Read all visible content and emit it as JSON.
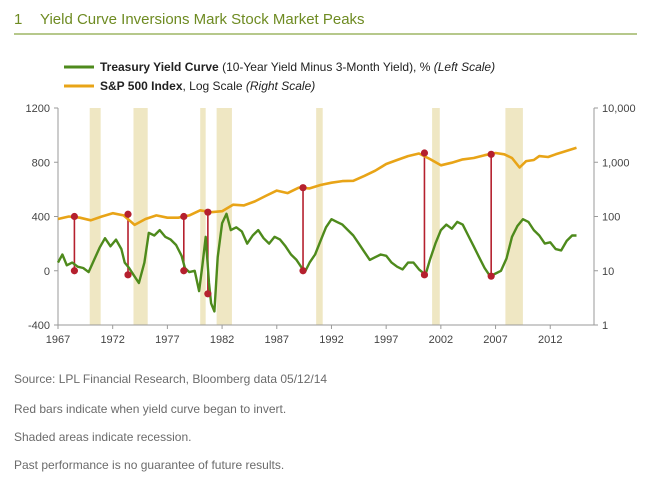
{
  "header": {
    "number": "1",
    "title": "Yield Curve Inversions Mark Stock Market Peaks"
  },
  "legend": {
    "yield": {
      "name": "Treasury Yield Curve",
      "desc": " (10-Year Yield Minus 3-Month Yield), % ",
      "scale": "(Left Scale)",
      "color": "#4e8a1c"
    },
    "sp": {
      "name": "S&P 500 Index",
      "desc": ", Log Scale ",
      "scale": "(Right Scale)",
      "color": "#e8a417"
    }
  },
  "chart_data": {
    "type": "line",
    "x_ticks": [
      "1967",
      "1972",
      "1977",
      "1982",
      "1987",
      "1992",
      "1997",
      "2002",
      "2007",
      "2012"
    ],
    "x_tick_values": [
      1967,
      1972,
      1977,
      1982,
      1987,
      1992,
      1997,
      2002,
      2007,
      2012
    ],
    "xlim": [
      1967,
      2016
    ],
    "left_axis": {
      "ylim": [
        -400,
        1200
      ],
      "ticks": [
        "-400",
        "0",
        "400",
        "800",
        "1200"
      ],
      "tick_values": [
        -400,
        0,
        400,
        800,
        1200
      ]
    },
    "right_axis": {
      "scale": "log",
      "ylim": [
        1,
        10000
      ],
      "ticks": [
        "1",
        "10",
        "100",
        "1,000",
        "10,000"
      ],
      "tick_values": [
        1,
        10,
        100,
        1000,
        10000
      ]
    },
    "recessions": [
      [
        1969.9,
        1970.9
      ],
      [
        1973.9,
        1975.2
      ],
      [
        1980.0,
        1980.5
      ],
      [
        1981.5,
        1982.9
      ],
      [
        1990.6,
        1991.2
      ],
      [
        2001.2,
        2001.9
      ],
      [
        2007.9,
        2009.5
      ]
    ],
    "series": [
      {
        "name": "Treasury Yield Curve",
        "color": "#4e8a1c",
        "x": [
          1967.0,
          1967.4,
          1967.8,
          1968.3,
          1968.8,
          1969.3,
          1969.8,
          1970.3,
          1970.8,
          1971.3,
          1971.8,
          1972.3,
          1972.8,
          1973.1,
          1973.5,
          1973.9,
          1974.4,
          1974.9,
          1975.3,
          1975.8,
          1976.3,
          1976.8,
          1977.3,
          1977.8,
          1978.3,
          1978.6,
          1979.0,
          1979.5,
          1979.9,
          1980.2,
          1980.5,
          1980.8,
          1981.0,
          1981.3,
          1981.6,
          1982.0,
          1982.4,
          1982.8,
          1983.3,
          1983.8,
          1984.3,
          1984.8,
          1985.3,
          1985.8,
          1986.3,
          1986.8,
          1987.3,
          1987.8,
          1988.3,
          1988.8,
          1989.3,
          1989.6,
          1990.0,
          1990.5,
          1991.0,
          1991.5,
          1992.0,
          1992.5,
          1993.0,
          1993.5,
          1994.0,
          1994.5,
          1995.0,
          1995.5,
          1996.0,
          1996.5,
          1997.0,
          1997.5,
          1998.0,
          1998.5,
          1999.0,
          1999.5,
          2000.0,
          2000.6,
          2001.0,
          2001.5,
          2002.0,
          2002.5,
          2003.0,
          2003.5,
          2004.0,
          2004.5,
          2005.0,
          2005.5,
          2006.0,
          2006.5,
          2007.0,
          2007.5,
          2008.0,
          2008.5,
          2009.0,
          2009.5,
          2010.0,
          2010.5,
          2011.0,
          2011.5,
          2012.0,
          2012.5,
          2013.0,
          2013.5,
          2014.0,
          2014.4
        ],
        "values": [
          60,
          120,
          40,
          60,
          30,
          20,
          -10,
          80,
          170,
          240,
          180,
          230,
          160,
          60,
          20,
          -30,
          -90,
          60,
          280,
          260,
          300,
          250,
          230,
          190,
          110,
          20,
          -10,
          0,
          -150,
          40,
          250,
          -90,
          -240,
          -300,
          100,
          350,
          420,
          300,
          320,
          290,
          200,
          260,
          300,
          240,
          200,
          250,
          230,
          180,
          120,
          80,
          20,
          -5,
          60,
          120,
          220,
          320,
          380,
          360,
          340,
          300,
          260,
          200,
          140,
          80,
          100,
          120,
          110,
          60,
          30,
          10,
          60,
          60,
          10,
          -30,
          80,
          200,
          300,
          340,
          310,
          360,
          340,
          260,
          180,
          100,
          20,
          -40,
          -20,
          0,
          90,
          250,
          330,
          380,
          360,
          300,
          260,
          200,
          210,
          160,
          150,
          220,
          260,
          260
        ]
      },
      {
        "name": "S&P 500 Index",
        "color": "#e8a417",
        "x": [
          1967,
          1968,
          1969,
          1970,
          1971,
          1972,
          1973,
          1974,
          1975,
          1976,
          1977,
          1978,
          1979,
          1980,
          1981,
          1982,
          1983,
          1984,
          1985,
          1986,
          1987,
          1988,
          1989,
          1990,
          1991,
          1992,
          1993,
          1994,
          1995,
          1996,
          1997,
          1998,
          1999,
          2000,
          2001,
          2002,
          2003,
          2004,
          2005,
          2006,
          2007,
          2007.8,
          2008.5,
          2009.2,
          2009.8,
          2010.5,
          2011,
          2011.8,
          2012.5,
          2013.2,
          2014.4
        ],
        "values": [
          90,
          100,
          95,
          85,
          100,
          115,
          105,
          70,
          90,
          105,
          95,
          95,
          105,
          130,
          120,
          125,
          165,
          160,
          190,
          240,
          300,
          270,
          340,
          330,
          380,
          420,
          450,
          455,
          560,
          700,
          930,
          1100,
          1300,
          1450,
          1150,
          880,
          980,
          1130,
          1200,
          1350,
          1480,
          1400,
          1200,
          800,
          1050,
          1100,
          1300,
          1250,
          1400,
          1550,
          1850
        ]
      }
    ],
    "inversions": [
      {
        "x": 1968.5,
        "yield": 0,
        "sp": 100
      },
      {
        "x": 1973.4,
        "yield": -30,
        "sp": 110
      },
      {
        "x": 1978.5,
        "yield": 0,
        "sp": 100
      },
      {
        "x": 1980.7,
        "yield": -170,
        "sp": 120
      },
      {
        "x": 1989.4,
        "yield": 0,
        "sp": 340
      },
      {
        "x": 2000.5,
        "yield": -30,
        "sp": 1480
      },
      {
        "x": 2006.6,
        "yield": -40,
        "sp": 1400
      }
    ],
    "inversion_color": "#b5202e",
    "recession_color": "#efe7c3"
  },
  "footer": {
    "source": "Source: LPL Financial Research, Bloomberg data   05/12/14",
    "note1": "Red bars indicate when yield curve began to invert.",
    "note2": "Shaded areas indicate recession.",
    "note3": "Past performance is no guarantee of future results."
  }
}
